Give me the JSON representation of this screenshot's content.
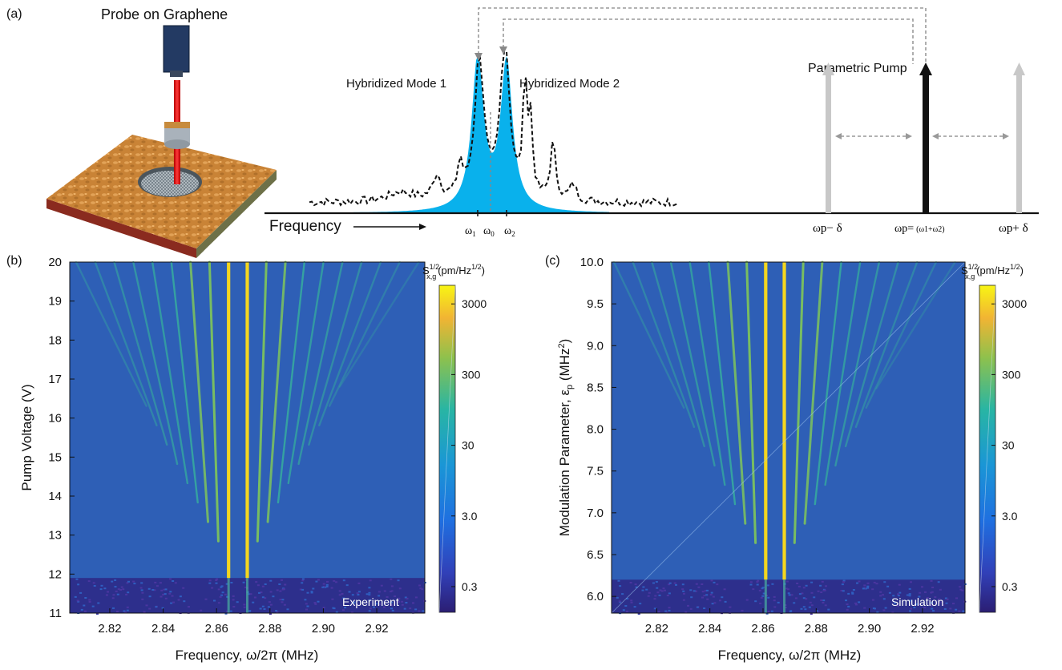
{
  "panel_a": {
    "label": "(a)",
    "probe_title": "Probe on Graphene",
    "mode1_label": "Hybridized Mode 1",
    "mode2_label": "Hybridized Mode 2",
    "pump_label": "Parametric Pump",
    "freq_axis_label": "Frequency",
    "omega_ticks": [
      {
        "base": "ω",
        "sub": "1"
      },
      {
        "base": "ω",
        "sub": "0"
      },
      {
        "base": "ω",
        "sub": "2"
      }
    ],
    "pump_ticks": {
      "left": "ωp− δ",
      "center_main": "ωp=",
      "center_sub": "(ω1+ω2)",
      "right": "ωp+ δ"
    }
  },
  "chart_data": [
    {
      "type": "heatmap",
      "panel_label": "(b)",
      "xlabel": "Frequency, ω/2π (MHz)",
      "ylabel": "Pump Voltage (V)",
      "x_ticks": [
        "2.82",
        "2.84",
        "2.86",
        "2.88",
        "2.90",
        "2.92"
      ],
      "y_ticks": [
        "11",
        "12",
        "13",
        "14",
        "15",
        "16",
        "17",
        "18",
        "19",
        "20"
      ],
      "xlim": [
        2.805,
        2.938
      ],
      "ylim": [
        11,
        20
      ],
      "threshold": 11.9,
      "annotation": "Experiment",
      "colorbar": {
        "label_main": "S",
        "label_sup": "1/2",
        "label_sub": "x,g",
        "label_unit": "(pm/Hz",
        "label_unit_sup": "1/2",
        "label_close": ")",
        "ticks": [
          "3000",
          "300",
          "30",
          "3.0",
          "0.3"
        ],
        "scale": "log"
      },
      "mode_frequencies_mhz": [
        2.8645,
        2.8715
      ]
    },
    {
      "type": "heatmap",
      "panel_label": "(c)",
      "xlabel": "Frequency, ω/2π (MHz)",
      "ylabel_main": "Modulation Parameter, ε",
      "ylabel_sub": "p",
      "ylabel_unit": " (MHz",
      "ylabel_unit_sup": "2",
      "ylabel_close": ")",
      "x_ticks": [
        "2.82",
        "2.84",
        "2.86",
        "2.88",
        "2.90",
        "2.92"
      ],
      "y_ticks": [
        "6.0",
        "6.5",
        "7.0",
        "7.5",
        "8.0",
        "8.5",
        "9.0",
        "9.5",
        "10.0"
      ],
      "xlim": [
        2.803,
        2.936
      ],
      "ylim": [
        5.8,
        10.0
      ],
      "threshold": 6.2,
      "annotation": "Simulation",
      "colorbar": {
        "label_main": "S",
        "label_sup": "1/2",
        "label_sub": "x,g",
        "label_unit": "(pm/Hz",
        "label_unit_sup": "1/2",
        "label_close": ")",
        "ticks": [
          "3000",
          "300",
          "30",
          "3.0",
          "0.3"
        ],
        "scale": "log"
      },
      "mode_frequencies_mhz": [
        2.861,
        2.868
      ]
    }
  ],
  "colors": {
    "background_map": "#2e5fb6",
    "low_band": "#2d2f8c",
    "line_bright": "#f4d61f",
    "line_mid": "#37b59a",
    "spectrum_fill": "#09b1ec",
    "pump_arrow_side": "#c8c8c8",
    "pump_arrow_center": "#111111",
    "metal_orange": "#d48b3d"
  }
}
